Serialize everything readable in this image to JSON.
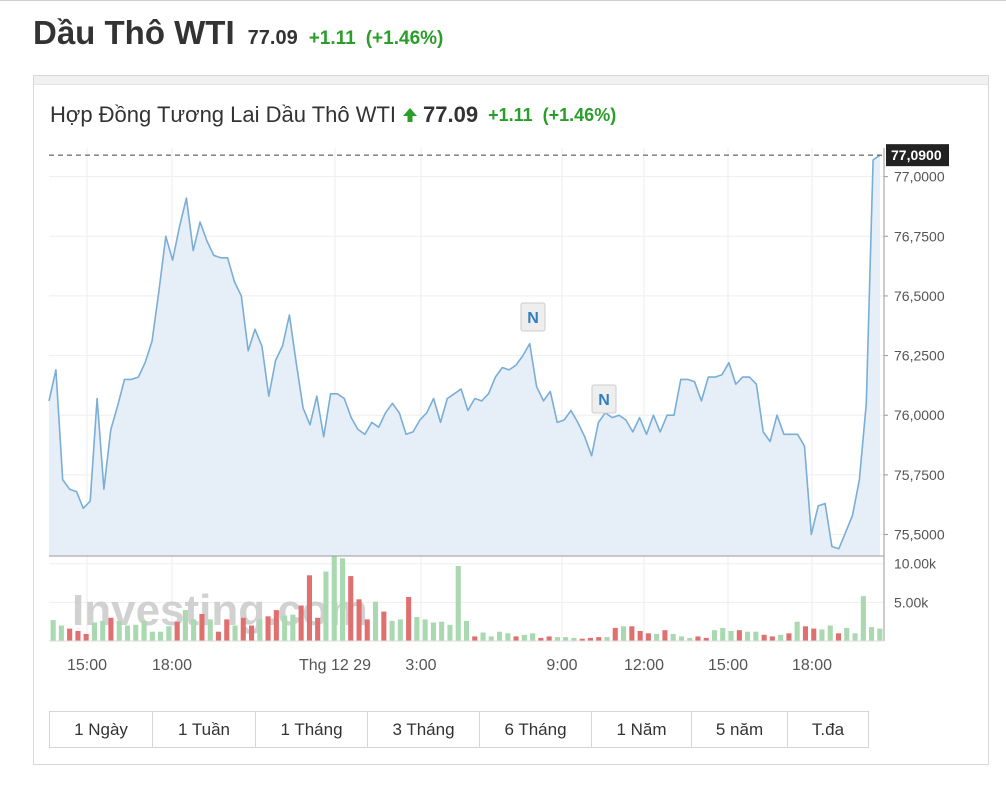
{
  "header": {
    "title": "Dầu Thô WTI",
    "price": "77.09",
    "change": "+1.11",
    "change_pct": "(+1.46%)"
  },
  "panel": {
    "title": "Hợp Đồng Tương Lai Dầu Thô WTI",
    "price": "77.09",
    "change": "+1.11",
    "change_pct": "(+1.46%)",
    "arrow_icon": "up-arrow-icon"
  },
  "colors": {
    "line": "#7aaed6",
    "fill": "#e6eef7",
    "up": "#2a9d2a",
    "vol_up": "#a9d8b1",
    "vol_down": "#e07070"
  },
  "watermark": "Investing.com",
  "ranges": [
    "1 Ngày",
    "1 Tuần",
    "1 Tháng",
    "3 Tháng",
    "6 Tháng",
    "1 Năm",
    "5 năm",
    "T.đa"
  ],
  "chart_data": {
    "type": "line",
    "title": "",
    "xlabel": "",
    "ylabel": "",
    "ylim": [
      75.41,
      77.12
    ],
    "y_ticks": [
      "77,0000",
      "76,7500",
      "76,5000",
      "76,2500",
      "76,0000",
      "75,7500",
      "75,5000"
    ],
    "y_tick_values": [
      77.0,
      76.75,
      76.5,
      76.25,
      76.0,
      75.75,
      75.5
    ],
    "x_ticks": [
      "15:00",
      "18:00",
      "Thg 12 29",
      "3:00",
      "9:00",
      "12:00",
      "15:00",
      "18:00"
    ],
    "last_price_label": "77,0900",
    "last_price": 77.09,
    "grid": true,
    "price_series": {
      "name": "",
      "values": [
        76.06,
        76.19,
        75.73,
        75.69,
        75.68,
        75.61,
        75.64,
        76.07,
        75.69,
        75.94,
        76.04,
        76.15,
        76.15,
        76.16,
        76.22,
        76.31,
        76.52,
        76.75,
        76.65,
        76.79,
        76.91,
        76.69,
        76.81,
        76.73,
        76.67,
        76.66,
        76.66,
        76.56,
        76.5,
        76.27,
        76.36,
        76.29,
        76.08,
        76.23,
        76.29,
        76.42,
        76.22,
        76.03,
        75.96,
        76.08,
        75.91,
        76.09,
        76.09,
        76.07,
        75.99,
        75.94,
        75.92,
        75.97,
        75.95,
        76.01,
        76.05,
        76.01,
        75.92,
        75.93,
        75.98,
        76.01,
        76.07,
        75.97,
        76.07,
        76.09,
        76.11,
        76.02,
        76.07,
        76.06,
        76.09,
        76.16,
        76.2,
        76.19,
        76.21,
        76.25,
        76.3,
        76.12,
        76.06,
        76.1,
        75.97,
        75.98,
        76.02,
        75.97,
        75.91,
        75.83,
        75.97,
        76.01,
        75.99,
        76.0,
        75.98,
        75.93,
        75.99,
        75.92,
        76.0,
        75.93,
        76.0,
        76.0,
        76.15,
        76.15,
        76.14,
        76.06,
        76.16,
        76.16,
        76.17,
        76.22,
        76.13,
        76.16,
        76.16,
        76.13,
        75.93,
        75.89,
        76.0,
        75.92,
        75.92,
        75.92,
        75.87,
        75.5,
        75.62,
        75.63,
        75.45,
        75.44,
        75.51,
        75.58,
        75.73,
        76.05,
        77.07,
        77.09
      ]
    },
    "volume_series": {
      "name": "",
      "y_ticks": [
        "10.00k",
        "5.00k"
      ],
      "y_tick_values": [
        10000,
        5000
      ],
      "ylim": [
        0,
        11000
      ],
      "values": [
        2700,
        2000,
        1600,
        1300,
        900,
        2400,
        2600,
        3000,
        2600,
        2000,
        2100,
        2600,
        1200,
        1200,
        1900,
        2500,
        4000,
        2800,
        3500,
        2800,
        1200,
        2800,
        2000,
        3000,
        2000,
        2800,
        3200,
        4000,
        3300,
        3400,
        4600,
        8500,
        3000,
        9000,
        11000,
        10700,
        8400,
        5400,
        2800,
        5100,
        3800,
        2600,
        2800,
        5700,
        3100,
        2800,
        2400,
        2500,
        2100,
        9700,
        2600,
        600,
        1100,
        600,
        1200,
        1000,
        600,
        800,
        1000,
        400,
        600,
        500,
        500,
        400,
        300,
        400,
        500,
        500,
        1700,
        1900,
        1900,
        1300,
        1000,
        900,
        1400,
        900,
        600,
        400,
        600,
        400,
        1400,
        1700,
        1300,
        1400,
        1200,
        1200,
        800,
        600,
        800,
        1000,
        2500,
        1900,
        1600,
        1500,
        2000,
        1000,
        1700,
        1000,
        5800,
        1800,
        1600
      ]
    }
  }
}
